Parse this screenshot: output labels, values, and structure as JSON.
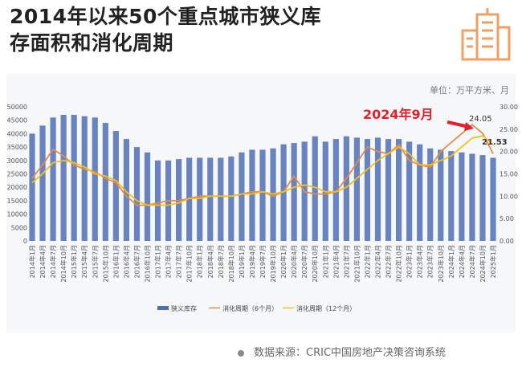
{
  "title_lines": [
    "2014年以来50个重点城市狭义库",
    "存面积和消化周期"
  ],
  "unit_label": "单位：万平方米、月",
  "source": "数据来源：CRIC中国房地产决策咨询系统",
  "icon": "building-icon",
  "colors": {
    "bars": "#4f6fb5",
    "six_month": "#e58a4a",
    "twelve_month": "#f2c21b",
    "callout": "#e0202a",
    "icon": "#f0a062"
  },
  "chart_data": {
    "type": "bar+line",
    "categories": [
      "2014年1月",
      "2014年4月",
      "2014年7月",
      "2014年10月",
      "2015年1月",
      "2015年4月",
      "2015年7月",
      "2015年10月",
      "2016年1月",
      "2016年4月",
      "2016年7月",
      "2016年10月",
      "2017年1月",
      "2017年4月",
      "2017年7月",
      "2017年10月",
      "2018年1月",
      "2018年4月",
      "2018年7月",
      "2018年10月",
      "2019年1月",
      "2019年4月",
      "2019年7月",
      "2019年10月",
      "2020年1月",
      "2020年4月",
      "2020年7月",
      "2020年10月",
      "2021年1月",
      "2021年4月",
      "2021年7月",
      "2021年10月",
      "2022年1月",
      "2022年4月",
      "2022年7月",
      "2022年10月",
      "2023年1月",
      "2023年4月",
      "2023年7月",
      "2023年10月",
      "2024年1月",
      "2024年4月",
      "2024年7月",
      "2024年10月",
      "2025年1月"
    ],
    "series": [
      {
        "name": "狭义库存",
        "type": "bar",
        "axis": "left",
        "values": [
          40000,
          43000,
          46000,
          47000,
          47000,
          46500,
          46000,
          44000,
          41000,
          38000,
          35000,
          33000,
          30000,
          30000,
          30500,
          31000,
          31000,
          31000,
          31000,
          31500,
          33000,
          34000,
          34000,
          34500,
          36000,
          36500,
          37000,
          39000,
          37000,
          38000,
          39000,
          38500,
          38000,
          38500,
          38000,
          38000,
          37000,
          36000,
          34500,
          34000,
          33500,
          33000,
          32500,
          32000,
          31000
        ]
      },
      {
        "name": "消化周期（6个月）",
        "type": "line",
        "axis": "right",
        "values": [
          14,
          17,
          20.5,
          19,
          17,
          16,
          15.5,
          14,
          13,
          10,
          8,
          8,
          8.5,
          9,
          9,
          9.5,
          10,
          10,
          10,
          10,
          10.5,
          11,
          11,
          10,
          11,
          14.5,
          11,
          10.5,
          10.5,
          11,
          14,
          17.5,
          21,
          20,
          19.5,
          21.5,
          18,
          17,
          16.5,
          20,
          22,
          24,
          26,
          24.05,
          19.5
        ]
      },
      {
        "name": "消化周期（12个月）",
        "type": "line",
        "axis": "right",
        "values": [
          13,
          15,
          17.5,
          18,
          17.5,
          16.5,
          15,
          14.5,
          13.5,
          11,
          9,
          8,
          8,
          8,
          8.5,
          9.5,
          9.5,
          10,
          10,
          10,
          10.5,
          10.5,
          11,
          10.5,
          11,
          12,
          12.5,
          12,
          11,
          11,
          12,
          14,
          16,
          18,
          19.5,
          21,
          19.5,
          17,
          17,
          18,
          19,
          21,
          23,
          23.5,
          21.53
        ]
      }
    ],
    "left_axis": {
      "min": 0,
      "max": 50000,
      "ticks": [
        "0",
        "5000",
        "10000",
        "15000",
        "20000",
        "25000",
        "30000",
        "35000",
        "40000",
        "45000",
        "50000"
      ]
    },
    "right_axis": {
      "min": 0,
      "max": 30,
      "ticks": [
        "0.00",
        "5.00",
        "10.00",
        "15.00",
        "20.00",
        "25.00",
        "30.00"
      ]
    },
    "annotations": {
      "callout": "2024年9月",
      "label_a": "24.05",
      "label_b": "21.53"
    },
    "legend_placement": "bottom",
    "grid": false
  }
}
